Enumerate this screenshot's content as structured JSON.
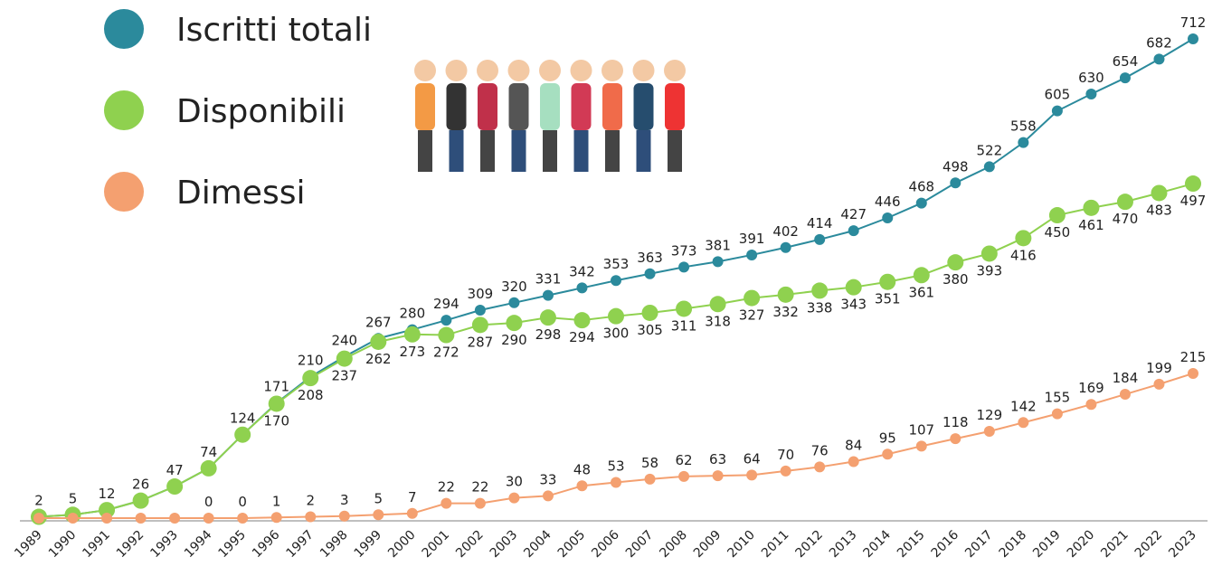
{
  "chart_data": {
    "type": "line",
    "categories": [
      "1989",
      "1990",
      "1991",
      "1992",
      "1993",
      "1994",
      "1995",
      "1996",
      "1997",
      "1998",
      "1999",
      "2000",
      "2001",
      "2002",
      "2003",
      "2004",
      "2005",
      "2006",
      "2007",
      "2008",
      "2009",
      "2010",
      "2011",
      "2012",
      "2013",
      "2014",
      "2015",
      "2016",
      "2017",
      "2018",
      "2019",
      "2020",
      "2021",
      "2022",
      "2023"
    ],
    "ylim": [
      0,
      712
    ],
    "series": [
      {
        "name": "Iscritti totali",
        "color": "#2b8a9c",
        "values": [
          2,
          5,
          12,
          26,
          47,
          74,
          124,
          171,
          210,
          240,
          267,
          280,
          294,
          309,
          320,
          331,
          342,
          353,
          363,
          373,
          381,
          391,
          402,
          414,
          427,
          446,
          468,
          498,
          522,
          558,
          605,
          630,
          654,
          682,
          712
        ]
      },
      {
        "name": "Disponibili",
        "color": "#8fd14f",
        "values": [
          2,
          5,
          12,
          26,
          47,
          74,
          124,
          170,
          208,
          237,
          262,
          273,
          272,
          287,
          290,
          298,
          294,
          300,
          305,
          311,
          318,
          327,
          332,
          338,
          343,
          351,
          361,
          380,
          393,
          416,
          450,
          461,
          470,
          483,
          497
        ],
        "value_labels": [
          null,
          null,
          null,
          null,
          null,
          null,
          null,
          "170",
          "208",
          "237",
          "262",
          "273",
          "272",
          "287",
          "290",
          "298",
          "294",
          "300",
          "305",
          "311",
          "318",
          "327",
          "332",
          "338",
          "343",
          "351",
          "361",
          "380",
          "393",
          "416",
          "450",
          "461",
          "470",
          "483",
          "497"
        ]
      },
      {
        "name": "Dimessi",
        "color": "#f4a070",
        "values": [
          0,
          0,
          0,
          0,
          0,
          0,
          0,
          1,
          2,
          3,
          5,
          7,
          22,
          22,
          30,
          33,
          48,
          53,
          58,
          62,
          63,
          64,
          70,
          76,
          84,
          95,
          107,
          118,
          129,
          142,
          155,
          169,
          184,
          199,
          215
        ],
        "value_labels": [
          null,
          null,
          null,
          null,
          null,
          "0",
          "0",
          "1",
          "2",
          "3",
          "5",
          "7",
          "22",
          "22",
          "30",
          "33",
          "48",
          "53",
          "58",
          "62",
          "63",
          "64",
          "70",
          "76",
          "84",
          "95",
          "107",
          "118",
          "129",
          "142",
          "155",
          "169",
          "184",
          "199",
          "215"
        ]
      }
    ]
  }
}
